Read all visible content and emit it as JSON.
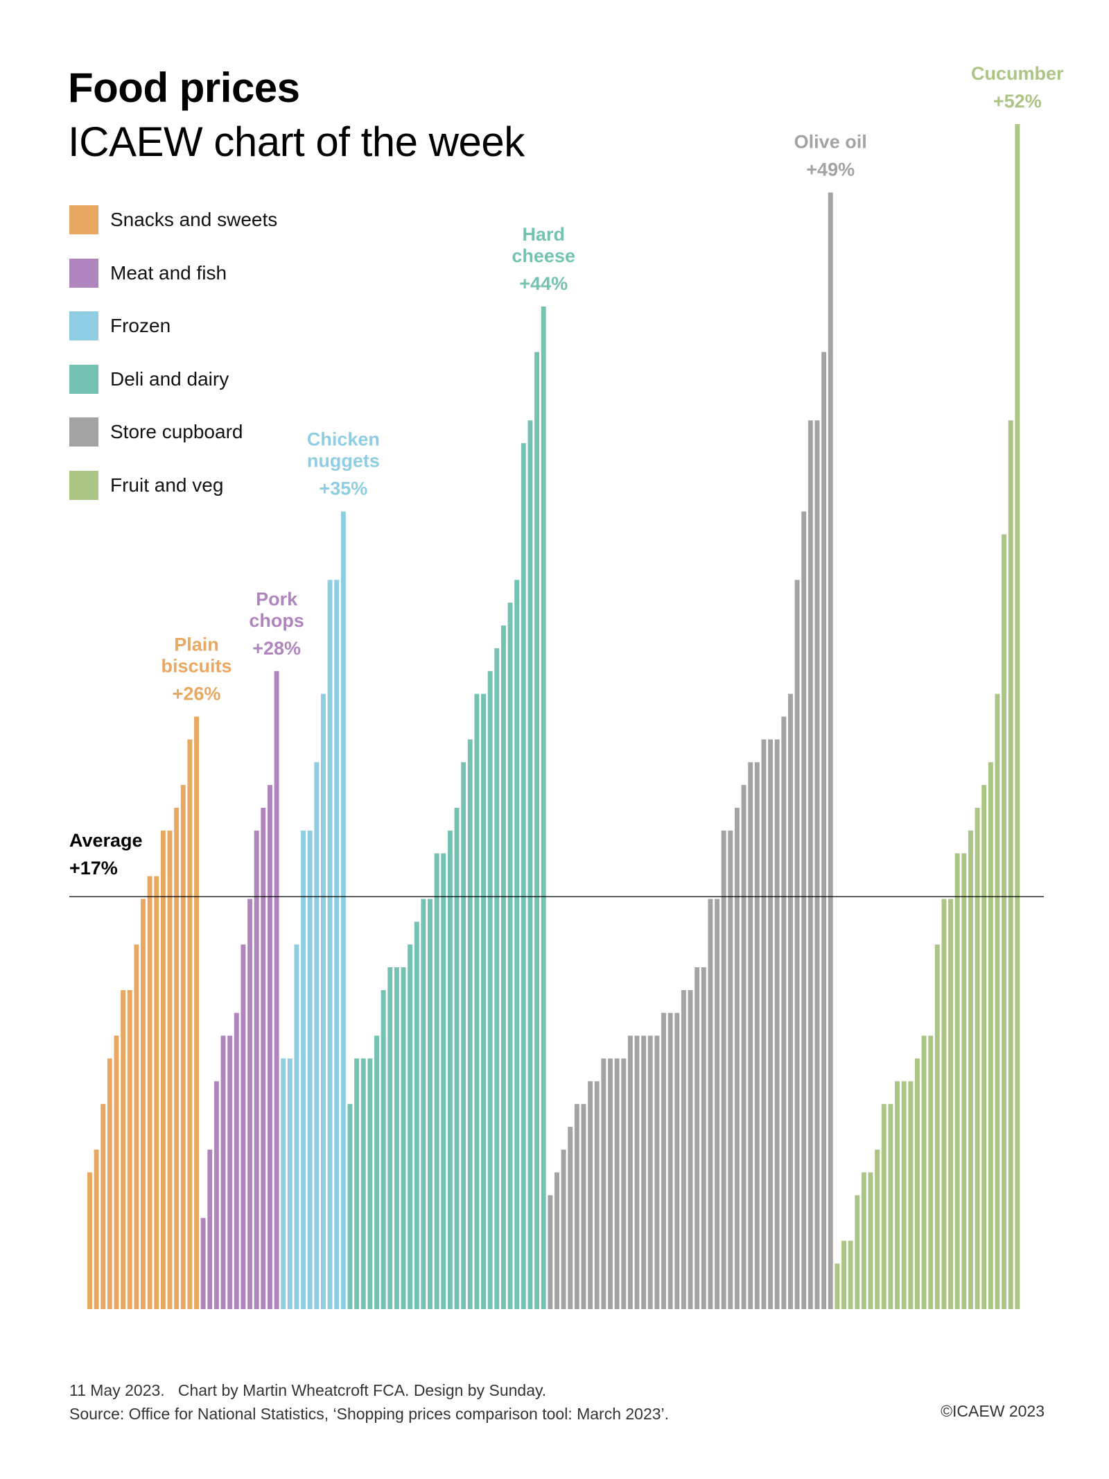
{
  "header": {
    "title": "Food prices",
    "subtitle": "ICAEW chart of the week"
  },
  "legend": [
    {
      "label": "Snacks and sweets",
      "color": "#E8A862"
    },
    {
      "label": "Meat and fish",
      "color": "#B085BE"
    },
    {
      "label": "Frozen",
      "color": "#8FCDE3"
    },
    {
      "label": "Deli and dairy",
      "color": "#74C2B1"
    },
    {
      "label": "Store cupboard",
      "color": "#A3A3A3"
    },
    {
      "label": "Fruit and veg",
      "color": "#ABC585"
    }
  ],
  "chart_data": {
    "type": "bar",
    "title": "Food prices",
    "subtitle": "ICAEW chart of the week",
    "xlabel": "",
    "ylabel": "",
    "ylim": [
      0,
      52
    ],
    "grid": false,
    "legend_position": "top-left",
    "unit": "% annual price change",
    "series": [
      {
        "name": "Snacks and sweets",
        "color": "#E8A862",
        "values": [
          6,
          7,
          9,
          11,
          12,
          14,
          14,
          16,
          18,
          19,
          19,
          21,
          21,
          22,
          23,
          25,
          26
        ],
        "highlight": {
          "label_lines": [
            "Plain",
            "biscuits"
          ],
          "value_label": "+26%"
        }
      },
      {
        "name": "Meat and fish",
        "color": "#B085BE",
        "values": [
          4,
          7,
          10,
          12,
          12,
          13,
          16,
          18,
          21,
          22,
          23,
          28
        ],
        "highlight": {
          "label_lines": [
            "Pork",
            "chops"
          ],
          "value_label": "+28%"
        }
      },
      {
        "name": "Frozen",
        "color": "#8FCDE3",
        "values": [
          11,
          11,
          16,
          21,
          21,
          24,
          27,
          32,
          32,
          35
        ],
        "highlight": {
          "label_lines": [
            "Chicken",
            "nuggets"
          ],
          "value_label": "+35%"
        }
      },
      {
        "name": "Deli and dairy",
        "color": "#74C2B1",
        "values": [
          9,
          11,
          11,
          11,
          12,
          14,
          15,
          15,
          15,
          16,
          17,
          18,
          18,
          20,
          20,
          21,
          22,
          24,
          25,
          27,
          27,
          28,
          29,
          30,
          31,
          32,
          38,
          39,
          42,
          44
        ],
        "highlight": {
          "label_lines": [
            "Hard",
            "cheese"
          ],
          "value_label": "+44%"
        }
      },
      {
        "name": "Store cupboard",
        "color": "#A3A3A3",
        "values": [
          5,
          6,
          7,
          8,
          9,
          9,
          10,
          10,
          11,
          11,
          11,
          11,
          12,
          12,
          12,
          12,
          12,
          13,
          13,
          13,
          14,
          14,
          15,
          15,
          18,
          18,
          21,
          21,
          22,
          23,
          24,
          24,
          25,
          25,
          25,
          26,
          27,
          32,
          35,
          39,
          39,
          42,
          49
        ],
        "highlight": {
          "label_lines": [
            "Olive oil"
          ],
          "value_label": "+49%"
        }
      },
      {
        "name": "Fruit and veg",
        "color": "#ABC585",
        "values": [
          2,
          3,
          3,
          5,
          6,
          6,
          7,
          9,
          9,
          10,
          10,
          10,
          11,
          12,
          12,
          16,
          18,
          18,
          20,
          20,
          21,
          22,
          23,
          24,
          27,
          34,
          39,
          52
        ],
        "highlight": {
          "label_lines": [
            "Cucumber"
          ],
          "value_label": "+52%"
        }
      }
    ],
    "reference_line": {
      "value": 17,
      "label_lines": [
        "Average",
        "+17%"
      ],
      "color": "#000000"
    }
  },
  "footer": {
    "line1": "11 May 2023.   Chart by Martin Wheatcroft FCA. Design by Sunday.",
    "line2": "Source: Office for National Statistics, ‘Shopping prices comparison tool: March 2023’.",
    "copyright": "©ICAEW 2023"
  }
}
